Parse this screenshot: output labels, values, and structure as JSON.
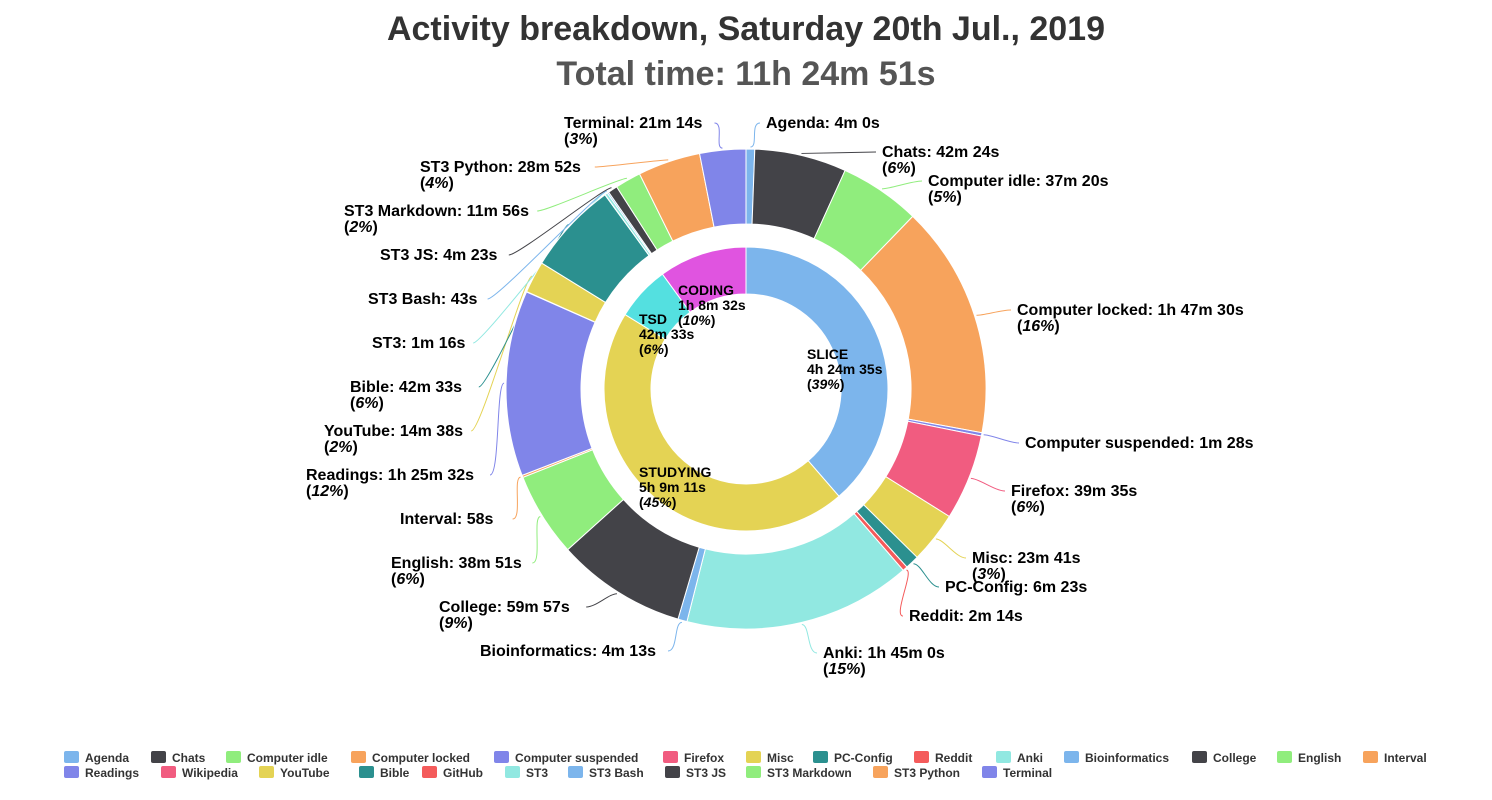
{
  "chart_data": {
    "type": "pie",
    "title": "Activity breakdown, Saturday 20th Jul., 2019",
    "subtitle": "Total time: 11h 24m 51s",
    "inner_series": [
      {
        "name": "SLICE",
        "value": "4h 24m 35s",
        "seconds": 15875,
        "percent": "39%",
        "color": "#7cb5ec"
      },
      {
        "name": "STUDYING",
        "value": "5h 9m 11s",
        "seconds": 18551,
        "percent": "45%",
        "color": "#e4d354"
      },
      {
        "name": "TSD",
        "value": "42m 33s",
        "seconds": 2553,
        "percent": "6%",
        "color": "#54e0e0"
      },
      {
        "name": "CODING",
        "value": "1h 8m 32s",
        "seconds": 4112,
        "percent": "10%",
        "color": "#e054e0"
      }
    ],
    "outer_series": [
      {
        "name": "Agenda",
        "value": "4m 0s",
        "seconds": 240,
        "percent": "",
        "color": "#7cb5ec"
      },
      {
        "name": "Chats",
        "value": "42m 24s",
        "seconds": 2544,
        "percent": "6%",
        "color": "#434348"
      },
      {
        "name": "Computer idle",
        "value": "37m 20s",
        "seconds": 2240,
        "percent": "5%",
        "color": "#90ed7d"
      },
      {
        "name": "Computer locked",
        "value": "1h 47m 30s",
        "seconds": 6450,
        "percent": "16%",
        "color": "#f7a35c"
      },
      {
        "name": "Computer suspended",
        "value": "1m 28s",
        "seconds": 88,
        "percent": "",
        "color": "#8085e9"
      },
      {
        "name": "Firefox",
        "value": "39m 35s",
        "seconds": 2375,
        "percent": "6%",
        "color": "#f15c80"
      },
      {
        "name": "Misc",
        "value": "23m 41s",
        "seconds": 1421,
        "percent": "3%",
        "color": "#e4d354"
      },
      {
        "name": "PC-Config",
        "value": "6m 23s",
        "seconds": 383,
        "percent": "",
        "color": "#2b908f"
      },
      {
        "name": "Reddit",
        "value": "2m 14s",
        "seconds": 134,
        "percent": "",
        "color": "#f45b5b"
      },
      {
        "name": "Anki",
        "value": "1h 45m 0s",
        "seconds": 6300,
        "percent": "15%",
        "color": "#91e8e1"
      },
      {
        "name": "Bioinformatics",
        "value": "4m 13s",
        "seconds": 253,
        "percent": "",
        "color": "#7cb5ec"
      },
      {
        "name": "College",
        "value": "59m 57s",
        "seconds": 3597,
        "percent": "9%",
        "color": "#434348"
      },
      {
        "name": "English",
        "value": "38m 51s",
        "seconds": 2331,
        "percent": "6%",
        "color": "#90ed7d"
      },
      {
        "name": "Interval",
        "value": "58s",
        "seconds": 58,
        "percent": "",
        "color": "#f7a35c"
      },
      {
        "name": "Readings",
        "value": "1h 25m 32s",
        "seconds": 5132,
        "percent": "12%",
        "color": "#8085e9"
      },
      {
        "name": "Wikipedia",
        "value": "",
        "seconds": 10,
        "percent": "",
        "color": "#f15c80"
      },
      {
        "name": "YouTube",
        "value": "14m 38s",
        "seconds": 878,
        "percent": "2%",
        "color": "#e4d354"
      },
      {
        "name": "Bible",
        "value": "42m 33s",
        "seconds": 2553,
        "percent": "6%",
        "color": "#2b908f"
      },
      {
        "name": "GitHub",
        "value": "",
        "seconds": 5,
        "percent": "",
        "color": "#f45b5b"
      },
      {
        "name": "ST3",
        "value": "1m 16s",
        "seconds": 76,
        "percent": "",
        "color": "#91e8e1"
      },
      {
        "name": "ST3 Bash",
        "value": "43s",
        "seconds": 43,
        "percent": "",
        "color": "#7cb5ec"
      },
      {
        "name": "ST3 JS",
        "value": "4m 23s",
        "seconds": 263,
        "percent": "",
        "color": "#434348"
      },
      {
        "name": "ST3 Markdown",
        "value": "11m 56s",
        "seconds": 716,
        "percent": "2%",
        "color": "#90ed7d"
      },
      {
        "name": "ST3 Python",
        "value": "28m 52s",
        "seconds": 1732,
        "percent": "4%",
        "color": "#f7a35c"
      },
      {
        "name": "Terminal",
        "value": "21m 14s",
        "seconds": 1274,
        "percent": "3%",
        "color": "#8085e9"
      }
    ],
    "legend_position": "bottom",
    "grid": false
  }
}
